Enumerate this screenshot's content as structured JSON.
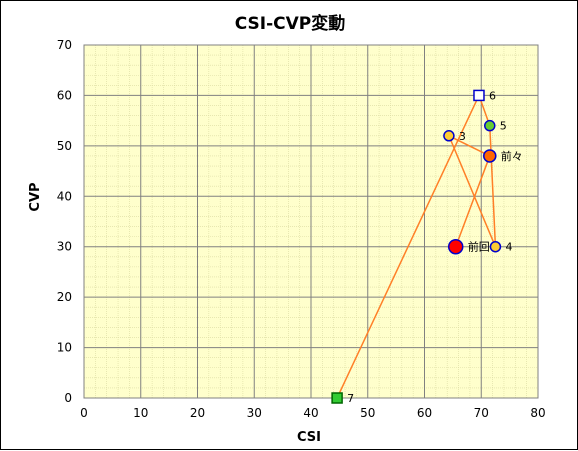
{
  "chart_data": {
    "type": "scatter",
    "title": "CSI-CVP変動",
    "xlabel": "CSI",
    "ylabel": "CVP",
    "xlim": [
      0,
      80
    ],
    "ylim": [
      0,
      70
    ],
    "x_ticks": [
      0,
      10,
      20,
      30,
      40,
      50,
      60,
      70,
      80
    ],
    "y_ticks": [
      0,
      10,
      20,
      30,
      40,
      50,
      60,
      70
    ],
    "grid": true,
    "plot_background": "#ffffcc",
    "minor_grid_color": "#d9d9a0",
    "major_grid_color": "#808080",
    "line_color": "#ff7f27",
    "points": [
      {
        "label": "前回",
        "x": 65.5,
        "y": 30,
        "marker": "circle",
        "fill": "#ff0000",
        "stroke": "#0000cc",
        "size": "large"
      },
      {
        "label": "前々",
        "x": 71.5,
        "y": 48,
        "marker": "circle",
        "fill": "#ff6600",
        "stroke": "#0000cc",
        "size": "medium"
      },
      {
        "label": "3",
        "x": 64.3,
        "y": 52,
        "marker": "circle",
        "fill": "#ffcc33",
        "stroke": "#0000cc",
        "size": "small"
      },
      {
        "label": "4",
        "x": 72.5,
        "y": 30,
        "marker": "circle",
        "fill": "#ffcc33",
        "stroke": "#0000cc",
        "size": "small"
      },
      {
        "label": "5",
        "x": 71.5,
        "y": 54,
        "marker": "circle",
        "fill": "#66cc33",
        "stroke": "#0000cc",
        "size": "small"
      },
      {
        "label": "6",
        "x": 69.6,
        "y": 60,
        "marker": "square",
        "fill": "#ffffff",
        "stroke": "#0000cc",
        "size": "small"
      },
      {
        "label": "7",
        "x": 44.6,
        "y": 0,
        "marker": "square",
        "fill": "#33cc33",
        "stroke": "#006600",
        "size": "small"
      }
    ]
  }
}
